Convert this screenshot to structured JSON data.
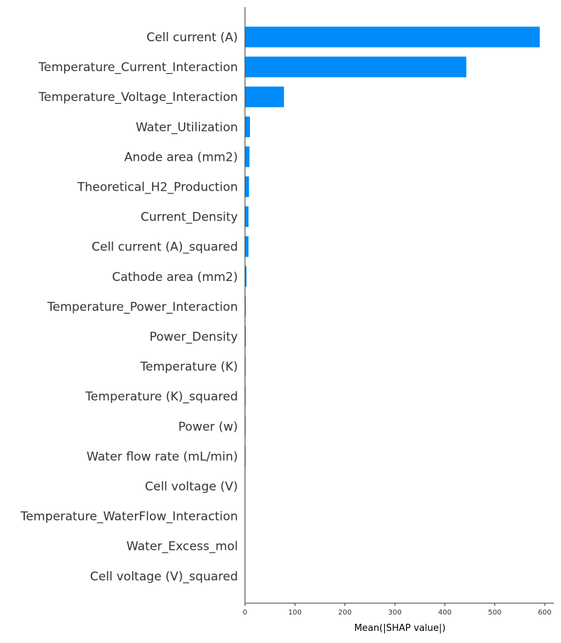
{
  "chart_data": {
    "type": "bar",
    "orientation": "horizontal",
    "title": "",
    "xlabel": "Mean(|SHAP value|)",
    "ylabel": "",
    "xlim": [
      0,
      620
    ],
    "xticks": [
      0,
      100,
      200,
      300,
      400,
      500,
      600
    ],
    "grid": false,
    "legend": "none",
    "bar_color": "#008bfb",
    "categories": [
      "Cell current (A)",
      "Temperature_Current_Interaction",
      "Temperature_Voltage_Interaction",
      "Water_Utilization",
      "Anode area (mm2)",
      "Theoretical_H2_Production",
      "Current_Density",
      "Cell current (A)_squared",
      "Cathode area (mm2)",
      "Temperature_Power_Interaction",
      "Power_Density",
      "Temperature (K)",
      "Temperature (K)_squared",
      "Power (w)",
      "Water flow rate (mL/min)",
      "Cell voltage (V)",
      "Temperature_WaterFlow_Interaction",
      "Water_Excess_mol",
      "Cell voltage (V)_squared"
    ],
    "values": [
      590,
      443,
      78,
      10,
      9,
      8,
      7,
      7,
      3,
      1.5,
      1.5,
      1.2,
      1.2,
      1.2,
      1.2,
      0.3,
      0.2,
      0.1,
      0.1
    ]
  }
}
